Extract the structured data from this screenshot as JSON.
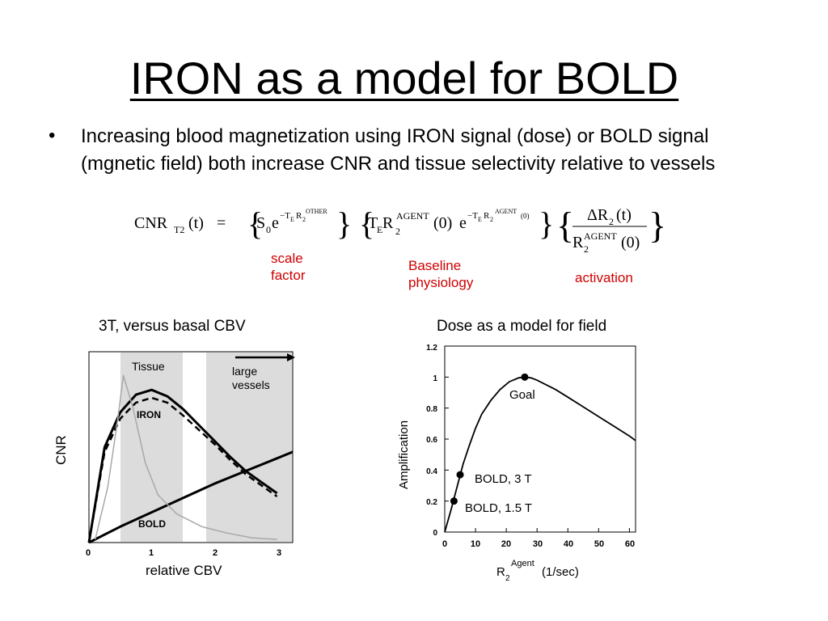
{
  "slide": {
    "title": "IRON as a model for BOLD",
    "bullet": "Increasing blood magnetization using IRON signal (dose) or BOLD signal (mgnetic field) both increase CNR and tissue selectivity relative to vessels",
    "bullet_marker": "•"
  },
  "equation": {
    "lhs": "CNR",
    "lhs_sub": "T2",
    "lhs_arg": "(t)",
    "equals": "=",
    "t1_S": "S",
    "t1_S_sub": "0",
    "t1_e": "e",
    "t1_exp": "−T",
    "t1_exp_sub": "E",
    "t1_exp_R": "R",
    "t1_exp_R_sub": "2",
    "t1_exp_R_sup": "OTHER",
    "t2_T": "T",
    "t2_T_sub": "E",
    "t2_R": "R",
    "t2_R_sub": "2",
    "t2_R_sup": "AGENT",
    "t2_zero": "(0)",
    "t2_e": "e",
    "t2_exp": "−T",
    "t2_exp_sub": "E",
    "t2_exp_R": "R",
    "t2_exp_R_sub": "2",
    "t2_exp_R_sup": "AGENT",
    "t2_exp_zero": "(0)",
    "frac_num": "ΔR",
    "frac_num_sub": "2",
    "frac_num_arg": "(t)",
    "frac_den": "R",
    "frac_den_sub": "2",
    "frac_den_sup": "AGENT",
    "frac_den_arg": "(0)"
  },
  "annotations": {
    "scale_line1": "scale",
    "scale_line2": "factor",
    "baseline_line1": "Baseline",
    "baseline_line2": "physiology",
    "activation": "activation",
    "color": "#d00000"
  },
  "figure_left": {
    "caption": "3T, versus basal CBV",
    "ylabel": "CNR",
    "xlabel": "relative CBV",
    "xticks": [
      "0",
      "1",
      "2",
      "3"
    ],
    "tissue_label": "Tissue",
    "vessels_line1": "large",
    "vessels_line2": "vessels",
    "iron_label": "IRON",
    "bold_label": "BOLD"
  },
  "figure_right": {
    "caption": "Dose as a model for field",
    "ylabel": "Amplification",
    "xlabel_R": "R",
    "xlabel_sub": "2",
    "xlabel_sup": "Agent",
    "xlabel_unit": "(1/sec)",
    "goal_label": "Goal",
    "bold3_label": "BOLD, 3 T",
    "bold15_label": "BOLD, 1.5 T",
    "xticks": [
      "0",
      "10",
      "20",
      "30",
      "40",
      "50",
      "60"
    ],
    "yticks": [
      "0",
      "0.2",
      "0.4",
      "0.6",
      "0.8",
      "1",
      "1.2"
    ]
  },
  "chart_data": [
    {
      "type": "line",
      "title": "3T, versus basal CBV",
      "xlabel": "relative CBV",
      "ylabel": "CNR",
      "xlim": [
        0,
        3.25
      ],
      "series": [
        {
          "name": "IRON",
          "x": [
            0,
            0.25,
            0.5,
            0.75,
            1.0,
            1.25,
            1.5,
            1.75,
            2.0,
            2.25,
            2.5,
            2.75,
            3.0
          ],
          "y": [
            0,
            0.6,
            0.82,
            0.93,
            0.96,
            0.92,
            0.84,
            0.74,
            0.64,
            0.54,
            0.45,
            0.38,
            0.31
          ]
        },
        {
          "name": "IRON",
          "x": [
            0,
            0.25,
            0.5,
            0.75,
            1.0,
            1.25,
            1.5,
            1.75,
            2.0,
            2.25,
            2.5,
            2.75,
            3.0
          ],
          "y": [
            0,
            0.57,
            0.78,
            0.88,
            0.91,
            0.88,
            0.8,
            0.71,
            0.62,
            0.52,
            0.43,
            0.36,
            0.29
          ]
        },
        {
          "name": "BOLD",
          "x": [
            0,
            0.5,
            1.0,
            1.5,
            2.0,
            2.5,
            3.0,
            3.25
          ],
          "y": [
            0,
            0.1,
            0.19,
            0.28,
            0.37,
            0.45,
            0.53,
            0.57
          ]
        },
        {
          "name": "Tissue",
          "x": [
            0.1,
            0.3,
            0.45,
            0.55,
            0.7,
            0.9,
            1.1,
            1.4,
            1.8,
            2.2,
            2.6,
            3.0
          ],
          "y": [
            0.02,
            0.35,
            0.75,
            1.05,
            0.85,
            0.5,
            0.3,
            0.18,
            0.1,
            0.06,
            0.03,
            0.02
          ]
        }
      ]
    },
    {
      "type": "line",
      "title": "Dose as a model for field",
      "xlabel": "R2 Agent (1/sec)",
      "ylabel": "Amplification",
      "xlim": [
        0,
        62
      ],
      "ylim": [
        0,
        1.2
      ],
      "series": [
        {
          "x": [
            0,
            2,
            4,
            6,
            8,
            10,
            12,
            15,
            18,
            21,
            24,
            26,
            28,
            30,
            33,
            36,
            40,
            44,
            48,
            52,
            56,
            60,
            62
          ],
          "y": [
            0,
            0.14,
            0.29,
            0.44,
            0.56,
            0.67,
            0.76,
            0.85,
            0.92,
            0.97,
            0.995,
            1.0,
            0.995,
            0.98,
            0.95,
            0.92,
            0.87,
            0.82,
            0.77,
            0.72,
            0.67,
            0.62,
            0.59
          ]
        }
      ],
      "points": [
        {
          "label": "Goal",
          "x": 26,
          "y": 1.0
        },
        {
          "label": "BOLD, 3 T",
          "x": 5,
          "y": 0.37
        },
        {
          "label": "BOLD, 1.5 T",
          "x": 3,
          "y": 0.2
        }
      ]
    }
  ]
}
